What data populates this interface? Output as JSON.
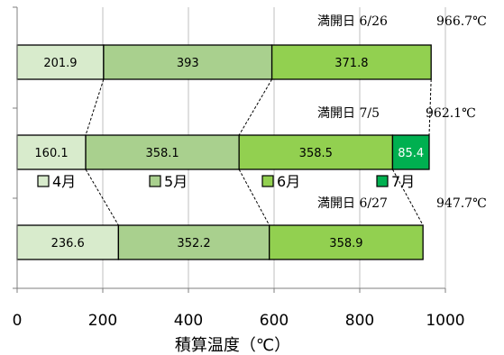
{
  "chart_data": {
    "type": "bar",
    "orientation": "horizontal",
    "stacked": true,
    "xlabel": "積算温度（℃）",
    "xlim": [
      0,
      1000
    ],
    "xticks": [
      "0",
      "200",
      "400",
      "600",
      "800",
      "1000"
    ],
    "grid": true,
    "legend_placement": "middle",
    "series": [
      {
        "name": "4月",
        "color": "#d8ebcc"
      },
      {
        "name": "5月",
        "color": "#a9d08e"
      },
      {
        "name": "6月",
        "color": "#92d050"
      },
      {
        "name": "7月",
        "color": "#00b050"
      }
    ],
    "bars": [
      {
        "values": [
          201.9,
          393,
          371.8
        ],
        "labels": [
          "201.9",
          "393",
          "371.8"
        ],
        "annotation": {
          "prefix": "満開日",
          "date": "6/26",
          "total": "966.7℃"
        }
      },
      {
        "values": [
          160.1,
          358.1,
          358.5,
          85.4
        ],
        "labels": [
          "160.1",
          "358.1",
          "358.5",
          "85.4"
        ],
        "annotation": {
          "prefix": "満開日",
          "date": "7/5",
          "total": "962.1℃"
        }
      },
      {
        "values": [
          236.6,
          352.2,
          358.9
        ],
        "labels": [
          "236.6",
          "352.2",
          "358.9"
        ],
        "annotation": {
          "prefix": "満開日",
          "date": "6/27",
          "total": "947.7℃"
        }
      }
    ]
  }
}
